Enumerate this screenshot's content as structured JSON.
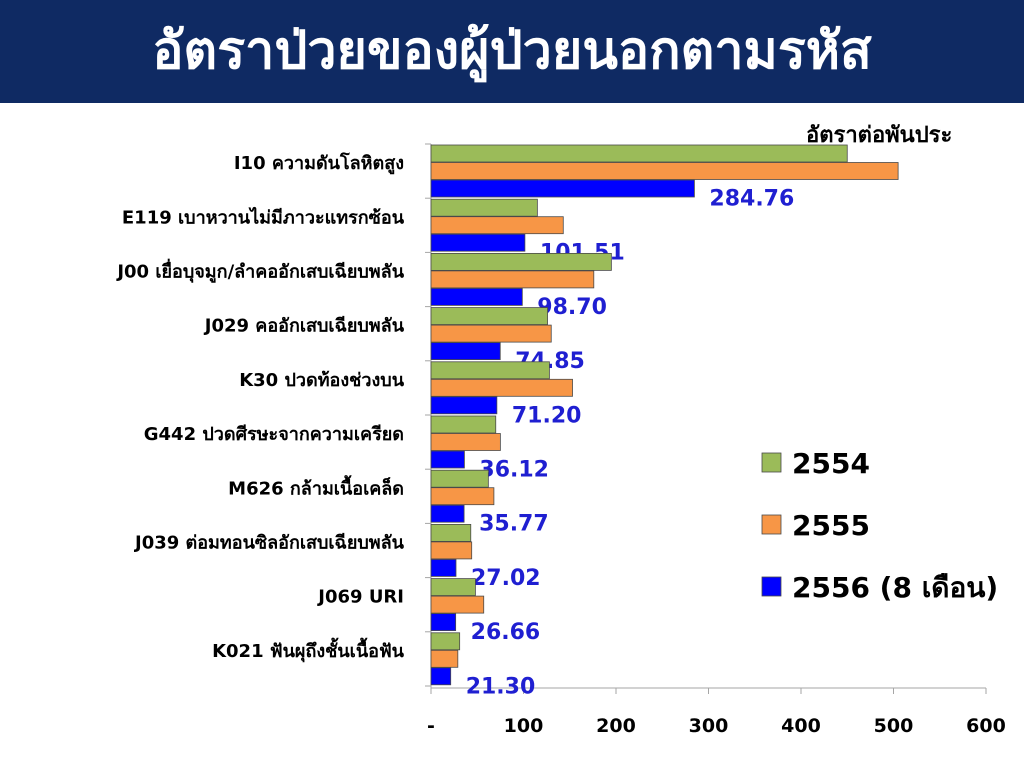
{
  "header": {
    "title": "อัตราป่วยของผู้ป่วยนอกตามรหัส"
  },
  "unit_label": "อัตราต่อพันประ",
  "chart_data": {
    "type": "bar",
    "orientation": "horizontal",
    "categories": [
      "I10 ความดันโลหิตสูง",
      "E119 เบาหวานไม่มีภาวะแทรกซ้อน",
      "J00 เยื่อบุจมูก/ลำคออักเสบเฉียบพลัน",
      "J029 คออักเสบเฉียบพลัน",
      "K30 ปวดท้องช่วงบน",
      "G442 ปวดศีรษะจากความเครียด",
      "M626 กล้ามเนื้อเคล็ด",
      "J039 ต่อมทอนซิลอักเสบเฉียบพลัน",
      "J069 URI",
      "K021 ฟันผุถึงชั้นเนื้อฟัน"
    ],
    "series": [
      {
        "name": "2554",
        "color": "#9bbb59",
        "values": [
          450,
          115,
          195,
          126,
          128,
          70,
          62,
          43,
          48,
          31
        ]
      },
      {
        "name": "2555",
        "color": "#f79646",
        "values": [
          505,
          143,
          176,
          130,
          153,
          75,
          68,
          44,
          57,
          29
        ]
      },
      {
        "name": "2556 (8 เดือน)",
        "color": "#0000ff",
        "values": [
          284.76,
          101.51,
          98.7,
          74.85,
          71.2,
          36.12,
          35.77,
          27.02,
          26.66,
          21.3
        ]
      }
    ],
    "data_labels": [
      "284.76",
      "101.51",
      "98.70",
      "74.85",
      "71.20",
      "36.12",
      "35.77",
      "27.02",
      "26.66",
      "21.30"
    ],
    "x_ticks": [
      "-",
      "100",
      "200",
      "300",
      "400",
      "500",
      "600"
    ],
    "xlim": [
      0,
      600
    ],
    "legend_position": "right",
    "grid": false
  }
}
